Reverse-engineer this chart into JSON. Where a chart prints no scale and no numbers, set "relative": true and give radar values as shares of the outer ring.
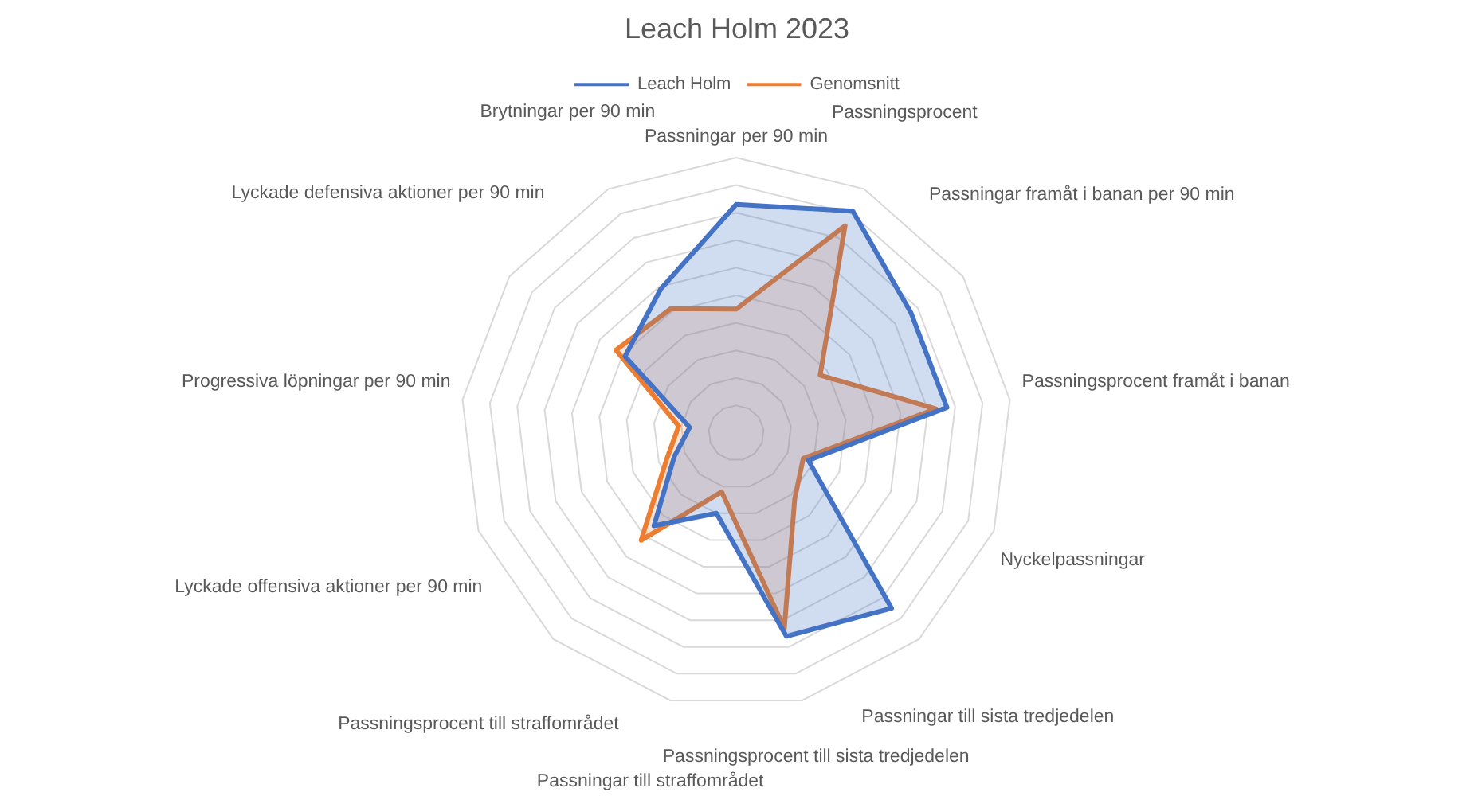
{
  "chart_data": {
    "type": "radar",
    "title": "Leach Holm 2023",
    "relative": true,
    "grid": true,
    "legend": "top",
    "marker": "none",
    "categories": [
      "Passningar per 90 min",
      "Passningsprocent",
      "Passningar framåt i banan per 90 min",
      "Passningsprocent framåt i banan",
      "Nyckelpassningar",
      "Passningar till sista tredjedelen",
      "Passningsprocent till sista tredjedelen",
      "Passningar till straffområdet",
      "Passningsprocent till straffområdet",
      "Lyckade offensiva aktioner per 90 min",
      "Progressiva löpningar per 90 min",
      "Lyckade defensiva aktioner per 90 min",
      "Brytningar per 90 min"
    ],
    "series": [
      {
        "name": "Leach Holm",
        "color": "#4472c4",
        "values": [
          0.83,
          0.91,
          0.77,
          0.77,
          0.28,
          0.85,
          0.76,
          0.3,
          0.45,
          0.24,
          0.17,
          0.49,
          0.59
        ]
      },
      {
        "name": "Genomsnitt",
        "color": "#ed7d31",
        "values": [
          0.45,
          0.85,
          0.37,
          0.73,
          0.26,
          0.32,
          0.73,
          0.22,
          0.52,
          0.27,
          0.21,
          0.53,
          0.51
        ]
      }
    ]
  }
}
